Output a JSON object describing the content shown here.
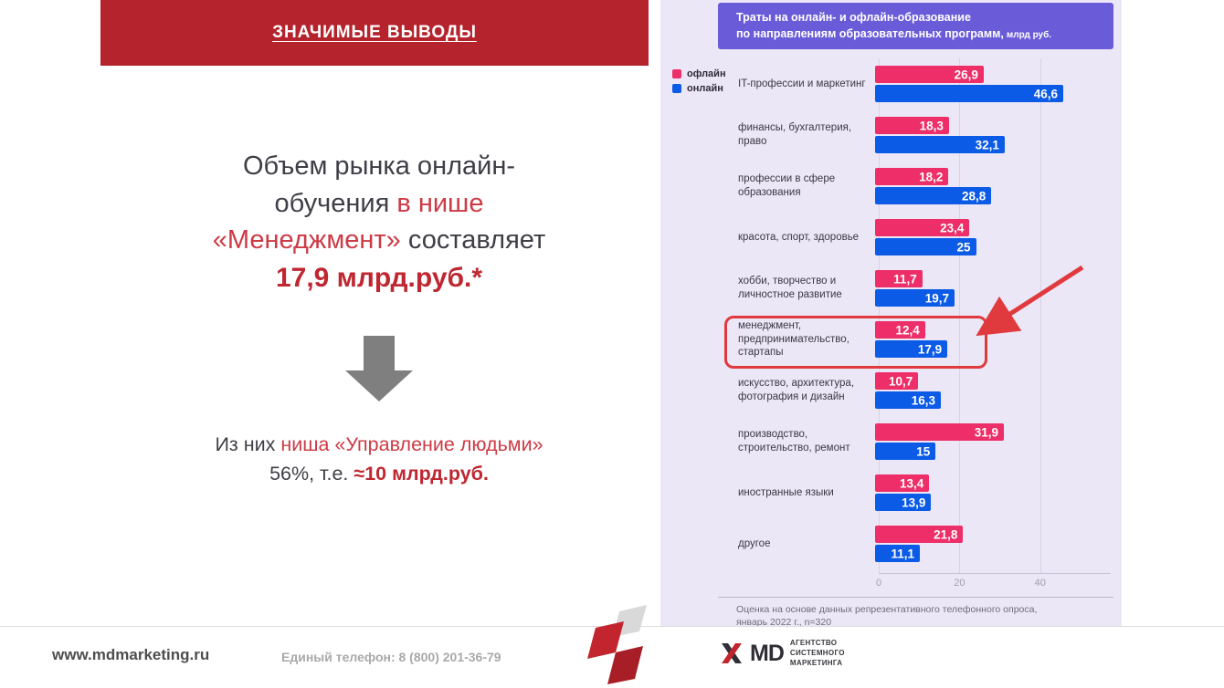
{
  "header": {
    "title": "ЗНАЧИМЫЕ ВЫВОДЫ"
  },
  "conclusion": {
    "segments": [
      {
        "text": "Объем рынка онлайн-",
        "style": "dark"
      },
      {
        "text": "",
        "style": "break"
      },
      {
        "text": "обучения ",
        "style": "dark"
      },
      {
        "text": "в нише",
        "style": "red"
      },
      {
        "text": "",
        "style": "break"
      },
      {
        "text": "«Менеджмент»",
        "style": "red"
      },
      {
        "text": " составляет",
        "style": "dark"
      },
      {
        "text": "",
        "style": "break"
      },
      {
        "text": "17,9 млрд.руб.*",
        "style": "red-bold"
      }
    ]
  },
  "subconclusion": {
    "segments": [
      {
        "text": "Из них ",
        "style": "dark"
      },
      {
        "text": "ниша «Управление людьми»",
        "style": "red"
      },
      {
        "text": "",
        "style": "break"
      },
      {
        "text": "56%, т.е. ",
        "style": "dark"
      },
      {
        "text": "≈10 млрд.руб.",
        "style": "red-bold"
      }
    ]
  },
  "footer": {
    "website": "www.mdmarketing.ru",
    "phone": "Единый телефон: 8 (800) 201-36-79",
    "logo_text": "MD",
    "agency": [
      "АГЕНТСТВО",
      "СИСТЕМНОГО",
      "МАРКЕТИНГА"
    ]
  },
  "colors": {
    "banner_red": "#b5232d",
    "accent_red": "#cd3a45",
    "header_purple": "#6a5bd8",
    "panel_lavender": "#ebe7f6",
    "bar_offline_pink": "#ed2e68",
    "bar_online_blue": "#0b5be6",
    "highlight_red": "#e03a3e",
    "arrow_gray": "#7f7f7f"
  },
  "chart_data": {
    "type": "bar",
    "orientation": "horizontal",
    "title_line1": "Траты на онлайн- и офлайн-образование",
    "title_line2": "по направлениям образовательных программ,",
    "unit_label": "млрд руб.",
    "legend": [
      {
        "name": "офлайн",
        "color": "#ed2e68"
      },
      {
        "name": "онлайн",
        "color": "#0b5be6"
      }
    ],
    "categories": [
      "IT-профессии и маркетинг",
      "финансы, бухгалтерия, право",
      "профессии в сфере образования",
      "красота, спорт, здоровье",
      "хобби, творчество и личностное развитие",
      "менеджмент, предпринимательство, стартапы",
      "искусство, архитектура, фотография и дизайн",
      "производство, строительство, ремонт",
      "иностранные языки",
      "другое"
    ],
    "series": [
      {
        "name": "офлайн",
        "color": "#ed2e68",
        "values": [
          26.9,
          18.3,
          18.2,
          23.4,
          11.7,
          12.4,
          10.7,
          31.9,
          13.4,
          21.8
        ]
      },
      {
        "name": "онлайн",
        "color": "#0b5be6",
        "values": [
          46.6,
          32.1,
          28.8,
          25,
          19.7,
          17.9,
          16.3,
          15,
          13.9,
          11.1
        ]
      }
    ],
    "x_ticks": [
      "0",
      "20",
      "40"
    ],
    "xlim": [
      0,
      57
    ],
    "highlight_index": 5,
    "highlight_color": "#e03a3e",
    "footnote_line1": "Оценка на основе данных репрезентативного телефонного опроса,",
    "footnote_line2": "январь 2022 г., n=320"
  }
}
